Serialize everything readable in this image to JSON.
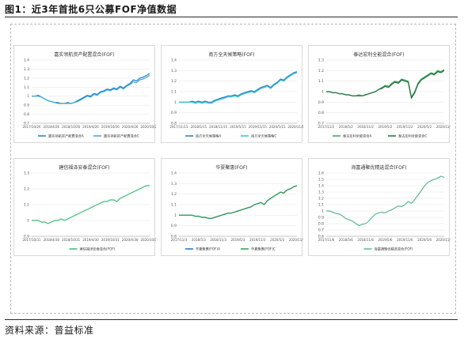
{
  "figure_title": "图1：近3年首批6只公募FOF净值数据",
  "source_text": "资料来源：普益标准",
  "chart_data": [
    {
      "type": "line",
      "title": "嘉实领航资产配置混合(FOF)",
      "ylim": [
        0.7,
        1.4
      ],
      "yticks": [
        "0.7",
        "0.8",
        "0.9",
        "1",
        "1.1",
        "1.2",
        "1.3",
        "1.4"
      ],
      "xticks": [
        "2017/10/26",
        "2018/4/26",
        "2018/10/26",
        "2019/4/26",
        "2019/10/26",
        "2020/4/26",
        "2020/10/26"
      ],
      "x": [
        0,
        1,
        2,
        3,
        4,
        5,
        6,
        7,
        8,
        9,
        10,
        11,
        12,
        13,
        14,
        15,
        16,
        17,
        18,
        19,
        20,
        21,
        22,
        23,
        24,
        25,
        26,
        27,
        28,
        29,
        30,
        31,
        32,
        33,
        34,
        35,
        36
      ],
      "series": [
        {
          "name": "嘉实领航资产配置混合A",
          "color": "#1f7fc4",
          "values": [
            1.0,
            1.0,
            1.01,
            0.99,
            0.97,
            0.95,
            0.94,
            0.93,
            0.93,
            0.92,
            0.92,
            0.93,
            0.92,
            0.93,
            0.95,
            0.97,
            0.99,
            1.01,
            1.0,
            1.03,
            1.02,
            1.05,
            1.06,
            1.08,
            1.07,
            1.09,
            1.08,
            1.11,
            1.09,
            1.12,
            1.14,
            1.18,
            1.17,
            1.2,
            1.21,
            1.23,
            1.25
          ]
        },
        {
          "name": "嘉实领航资产配置混合C",
          "color": "#35a8d8",
          "values": [
            1.0,
            1.0,
            1.0,
            0.99,
            0.97,
            0.95,
            0.94,
            0.93,
            0.92,
            0.92,
            0.92,
            0.92,
            0.92,
            0.93,
            0.94,
            0.96,
            0.98,
            1.0,
            0.99,
            1.02,
            1.01,
            1.04,
            1.05,
            1.07,
            1.06,
            1.08,
            1.07,
            1.1,
            1.08,
            1.11,
            1.13,
            1.16,
            1.15,
            1.18,
            1.19,
            1.21,
            1.23
          ]
        }
      ]
    },
    {
      "type": "line",
      "title": "南方全天候策略(FOF)",
      "ylim": [
        0.8,
        1.4
      ],
      "yticks": [
        "0.8",
        "0.9",
        "1",
        "1.1",
        "1.2",
        "1.3",
        "1.4"
      ],
      "xticks": [
        "2017/11/15",
        "2018/5/15",
        "2018/11/15",
        "2019/5/15",
        "2019/11/15",
        "2020/5/15",
        "2020/11/15"
      ],
      "x": [
        0,
        1,
        2,
        3,
        4,
        5,
        6,
        7,
        8,
        9,
        10,
        11,
        12,
        13,
        14,
        15,
        16,
        17,
        18,
        19,
        20,
        21,
        22,
        23,
        24,
        25,
        26,
        27,
        28,
        29,
        30,
        31,
        32,
        33,
        34,
        35,
        36
      ],
      "series": [
        {
          "name": "南方全天候策略A",
          "color": "#1f7fc4",
          "values": [
            1.0,
            1.0,
            1.0,
            1.0,
            1.01,
            1.0,
            1.01,
            1.0,
            1.01,
            1.0,
            1.0,
            1.02,
            1.03,
            1.04,
            1.05,
            1.06,
            1.06,
            1.07,
            1.06,
            1.08,
            1.09,
            1.1,
            1.11,
            1.1,
            1.12,
            1.14,
            1.15,
            1.16,
            1.14,
            1.17,
            1.19,
            1.22,
            1.21,
            1.24,
            1.26,
            1.28,
            1.29
          ]
        },
        {
          "name": "南方全天候策略C",
          "color": "#35c0d0",
          "values": [
            1.0,
            1.0,
            1.0,
            1.0,
            1.0,
            0.99,
            1.0,
            0.99,
            1.0,
            0.99,
            0.99,
            1.01,
            1.02,
            1.03,
            1.04,
            1.05,
            1.05,
            1.06,
            1.05,
            1.07,
            1.08,
            1.09,
            1.1,
            1.09,
            1.11,
            1.13,
            1.14,
            1.15,
            1.13,
            1.16,
            1.18,
            1.21,
            1.2,
            1.23,
            1.25,
            1.27,
            1.28
          ]
        }
      ]
    },
    {
      "type": "line",
      "title": "泰达宏利全能混合(FOF)",
      "ylim": [
        0.7,
        1.3
      ],
      "yticks": [
        "0.7",
        "0.8",
        "0.9",
        "1",
        "1.1",
        "1.2",
        "1.3"
      ],
      "xticks": [
        "2017/11/2",
        "2018/5/2",
        "2018/11/2",
        "2019/5/2",
        "2019/11/2",
        "2020/5/2",
        "2020/11/2"
      ],
      "x": [
        0,
        1,
        2,
        3,
        4,
        5,
        6,
        7,
        8,
        9,
        10,
        11,
        12,
        13,
        14,
        15,
        16,
        17,
        18,
        19,
        20,
        21,
        22,
        23,
        24,
        25,
        26,
        27,
        28,
        29,
        30,
        31,
        32,
        33,
        34,
        35,
        36
      ],
      "series": [
        {
          "name": "泰达宏利全能混合A",
          "color": "#3aa35a",
          "values": [
            1.0,
            1.0,
            0.99,
            0.99,
            0.98,
            0.98,
            0.97,
            0.97,
            0.96,
            0.96,
            0.97,
            0.96,
            0.97,
            0.98,
            0.99,
            1.0,
            1.02,
            1.04,
            1.06,
            1.05,
            1.08,
            1.1,
            1.09,
            1.12,
            1.11,
            1.1,
            0.95,
            1.0,
            1.08,
            1.12,
            1.14,
            1.16,
            1.18,
            1.17,
            1.2,
            1.19,
            1.21
          ]
        },
        {
          "name": "泰达宏利全能混合C",
          "color": "#1e6e3a",
          "values": [
            1.0,
            1.0,
            0.99,
            0.99,
            0.98,
            0.98,
            0.97,
            0.97,
            0.96,
            0.96,
            0.96,
            0.96,
            0.97,
            0.98,
            0.99,
            1.0,
            1.02,
            1.03,
            1.05,
            1.04,
            1.07,
            1.09,
            1.08,
            1.11,
            1.1,
            1.09,
            0.94,
            0.99,
            1.07,
            1.11,
            1.13,
            1.15,
            1.17,
            1.16,
            1.19,
            1.18,
            1.2
          ]
        }
      ]
    },
    {
      "type": "line",
      "title": "建信福泽安泰混合(FOF)",
      "ylim": [
        0.9,
        1.3
      ],
      "yticks": [
        "0.9",
        "1",
        "1.1",
        "1.2",
        "1.3"
      ],
      "xticks": [
        "2017/10/31",
        "2018/4/30",
        "2018/10/31",
        "2019/4/30",
        "2019/10/31",
        "2020/4/30",
        "2020/10/31"
      ],
      "x": [
        0,
        1,
        2,
        3,
        4,
        5,
        6,
        7,
        8,
        9,
        10,
        11,
        12,
        13,
        14,
        15,
        16,
        17,
        18,
        19,
        20,
        21,
        22,
        23,
        24,
        25,
        26,
        27,
        28,
        29,
        30,
        31,
        32,
        33,
        34,
        35,
        36
      ],
      "series": [
        {
          "name": "建信福泽安泰混合(FOF)",
          "color": "#3cb878",
          "values": [
            1.0,
            1.0,
            1.0,
            0.99,
            0.99,
            0.98,
            0.99,
            1.0,
            1.0,
            1.01,
            1.0,
            1.01,
            1.02,
            1.03,
            1.04,
            1.05,
            1.06,
            1.07,
            1.08,
            1.09,
            1.1,
            1.11,
            1.12,
            1.12,
            1.13,
            1.13,
            1.12,
            1.14,
            1.15,
            1.16,
            1.17,
            1.18,
            1.19,
            1.2,
            1.21,
            1.22,
            1.22
          ]
        }
      ]
    },
    {
      "type": "line",
      "title": "华夏聚惠(FOF)",
      "ylim": [
        0.8,
        1.4
      ],
      "yticks": [
        "0.8",
        "0.9",
        "1",
        "1.1",
        "1.2",
        "1.3",
        "1.4"
      ],
      "xticks": [
        "2017/11/3",
        "2018/5/3",
        "2018/11/3",
        "2019/5/3",
        "2019/11/3",
        "2020/5/3",
        "2020/11/3"
      ],
      "x": [
        0,
        1,
        2,
        3,
        4,
        5,
        6,
        7,
        8,
        9,
        10,
        11,
        12,
        13,
        14,
        15,
        16,
        17,
        18,
        19,
        20,
        21,
        22,
        23,
        24,
        25,
        26,
        27,
        28,
        29,
        30,
        31,
        32,
        33,
        34,
        35,
        36
      ],
      "series": [
        {
          "name": "华夏聚惠(FOF)A",
          "color": "#1f6fb8",
          "values": [
            1.0,
            1.0,
            1.0,
            1.0,
            1.0,
            0.99,
            0.99,
            0.98,
            0.98,
            0.97,
            0.97,
            0.98,
            0.99,
            1.0,
            1.01,
            1.02,
            1.02,
            1.03,
            1.04,
            1.05,
            1.06,
            1.07,
            1.08,
            1.1,
            1.11,
            1.12,
            1.1,
            1.14,
            1.16,
            1.18,
            1.2,
            1.22,
            1.21,
            1.24,
            1.25,
            1.27,
            1.28
          ]
        },
        {
          "name": "华夏聚惠(FOF)C",
          "color": "#2e9a4a",
          "values": [
            1.0,
            1.0,
            1.0,
            1.0,
            1.0,
            0.99,
            0.99,
            0.98,
            0.98,
            0.97,
            0.97,
            0.98,
            0.99,
            1.0,
            1.01,
            1.02,
            1.02,
            1.03,
            1.04,
            1.05,
            1.06,
            1.07,
            1.08,
            1.1,
            1.11,
            1.12,
            1.1,
            1.14,
            1.16,
            1.18,
            1.2,
            1.22,
            1.21,
            1.24,
            1.25,
            1.27,
            1.28
          ]
        }
      ]
    },
    {
      "type": "line",
      "title": "海富通聚优精选混合(FOF)",
      "ylim": [
        0.6,
        1.6
      ],
      "yticks": [
        "0.6",
        "0.7",
        "0.8",
        "0.9",
        "1",
        "1.1",
        "1.2",
        "1.3",
        "1.4",
        "1.5",
        "1.6"
      ],
      "xticks": [
        "2017/11/6",
        "2018/5/6",
        "2018/11/6",
        "2019/5/6",
        "2019/11/6",
        "2020/5/6",
        "2020/11/6"
      ],
      "x": [
        0,
        1,
        2,
        3,
        4,
        5,
        6,
        7,
        8,
        9,
        10,
        11,
        12,
        13,
        14,
        15,
        16,
        17,
        18,
        19,
        20,
        21,
        22,
        23,
        24,
        25,
        26,
        27,
        28,
        29,
        30,
        31,
        32,
        33,
        34,
        35,
        36
      ],
      "series": [
        {
          "name": "海富通聚优精选混合(FOF)",
          "color": "#5ab890",
          "values": [
            1.0,
            1.0,
            0.98,
            0.96,
            0.95,
            0.92,
            0.88,
            0.86,
            0.84,
            0.8,
            0.77,
            0.79,
            0.8,
            0.84,
            0.9,
            0.95,
            0.97,
            0.98,
            0.97,
            1.0,
            1.02,
            1.05,
            1.08,
            1.07,
            1.1,
            1.15,
            1.12,
            1.18,
            1.25,
            1.32,
            1.4,
            1.45,
            1.48,
            1.5,
            1.52,
            1.55,
            1.53
          ]
        }
      ]
    }
  ]
}
